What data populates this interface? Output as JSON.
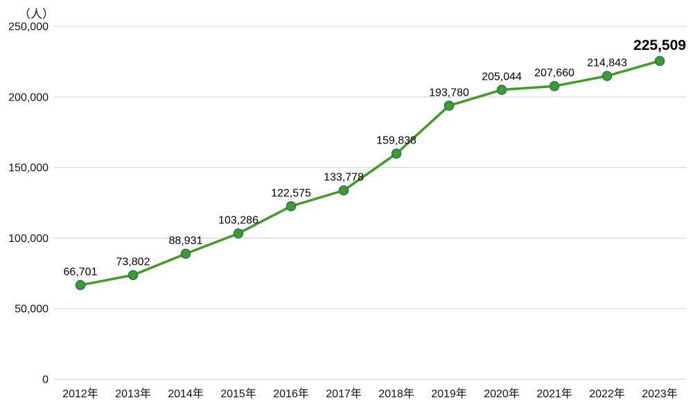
{
  "chart_data": {
    "type": "line",
    "title": "",
    "xlabel": "",
    "ylabel": "（人）",
    "categories": [
      "2012年",
      "2013年",
      "2014年",
      "2015年",
      "2016年",
      "2017年",
      "2018年",
      "2019年",
      "2020年",
      "2021年",
      "2022年",
      "2023年"
    ],
    "values": [
      66701,
      73802,
      88931,
      103286,
      122575,
      133778,
      159838,
      193780,
      205044,
      207660,
      214843,
      225509
    ],
    "labels": [
      "66,701",
      "73,802",
      "88,931",
      "103,286",
      "122,575",
      "133,778",
      "159,838",
      "193,780",
      "205,044",
      "207,660",
      "214,843",
      "225,509"
    ],
    "ylim": [
      0,
      250000
    ],
    "ytick_step": 50000,
    "ytick_labels": [
      "0",
      "50,000",
      "100,000",
      "150,000",
      "200,000",
      "250,000"
    ],
    "grid": true,
    "legend_position": "none",
    "highlight_last_point": true
  },
  "colors": {
    "line": "#3f9d23",
    "marker_fill": "#3f9d23",
    "marker_stroke": "#2a6f7f",
    "grid": "#d9d9d9",
    "text": "#111111",
    "highlight": "#ff0000",
    "background": "#ffffff"
  }
}
